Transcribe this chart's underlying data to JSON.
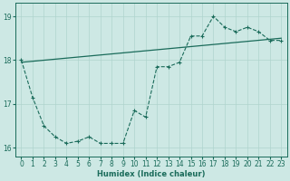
{
  "xlabel": "Humidex (Indice chaleur)",
  "background_color": "#cde8e4",
  "line_color": "#1a6b5a",
  "grid_color": "#afd4ce",
  "x_values": [
    0,
    1,
    2,
    3,
    4,
    5,
    6,
    7,
    8,
    9,
    10,
    11,
    12,
    13,
    14,
    15,
    16,
    17,
    18,
    19,
    20,
    21,
    22,
    23
  ],
  "y_zigzag": [
    18.0,
    17.15,
    16.5,
    16.25,
    16.1,
    16.15,
    16.25,
    16.1,
    16.1,
    16.1,
    16.85,
    16.7,
    17.85,
    17.85,
    17.95,
    18.55,
    18.55,
    19.0,
    18.75,
    18.65,
    18.75,
    18.65,
    18.45,
    18.45
  ],
  "trend_x": [
    0,
    23
  ],
  "trend_y": [
    17.95,
    18.5
  ],
  "ylim": [
    15.8,
    19.3
  ],
  "xlim": [
    -0.5,
    23.5
  ],
  "yticks": [
    16,
    17,
    18,
    19
  ],
  "xlabel_fontsize": 6.0,
  "tick_fontsize": 5.5
}
